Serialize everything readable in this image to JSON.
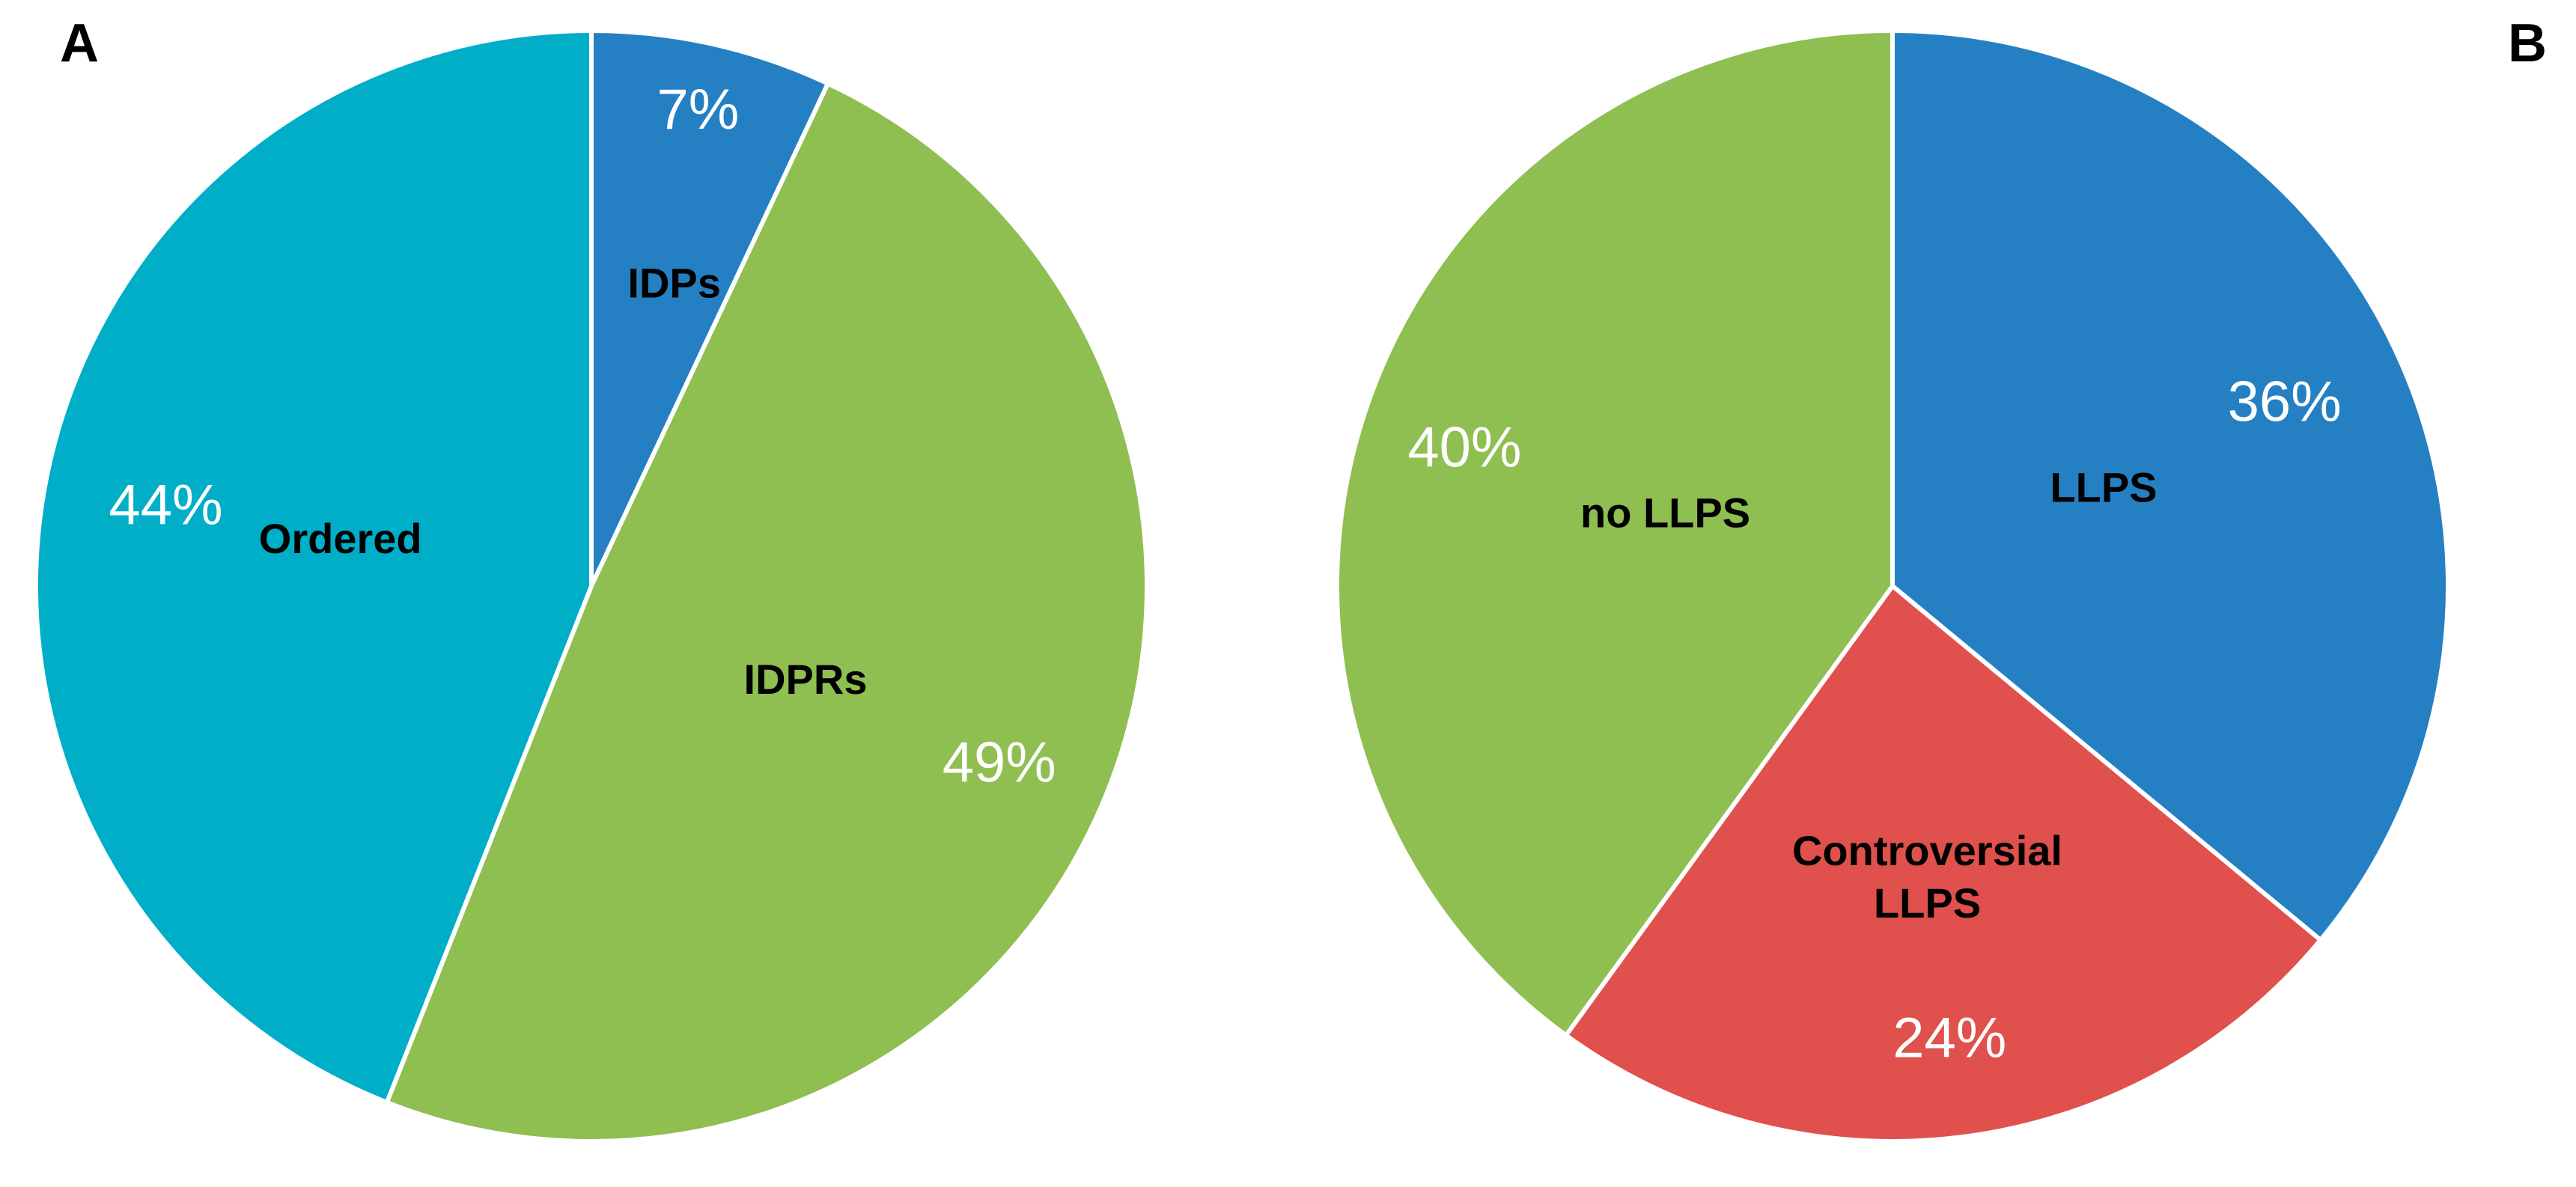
{
  "panels": [
    {
      "letter": "A",
      "chart_data": {
        "type": "pie",
        "start": "12 o'clock",
        "direction": "clockwise",
        "slices": [
          {
            "category": "IDPs",
            "value": 7,
            "percent_label": "7%",
            "color": "#2580c3"
          },
          {
            "category": "IDPRs",
            "value": 49,
            "percent_label": "49%",
            "color": "#8fbe51"
          },
          {
            "category": "Ordered",
            "value": 44,
            "percent_label": "44%",
            "color": "#01aec8"
          }
        ]
      }
    },
    {
      "letter": "B",
      "chart_data": {
        "type": "pie",
        "start": "12 o'clock",
        "direction": "clockwise",
        "slices": [
          {
            "category": "LLPS",
            "value": 36,
            "percent_label": "36%",
            "color": "#2580c3"
          },
          {
            "category": "Controversial LLPS",
            "value": 24,
            "percent_label": "24%",
            "color": "#e0504c",
            "category_lines": [
              "Controversial",
              "LLPS"
            ]
          },
          {
            "category": "no LLPS",
            "value": 40,
            "percent_label": "40%",
            "color": "#8fbe51"
          }
        ]
      }
    }
  ]
}
